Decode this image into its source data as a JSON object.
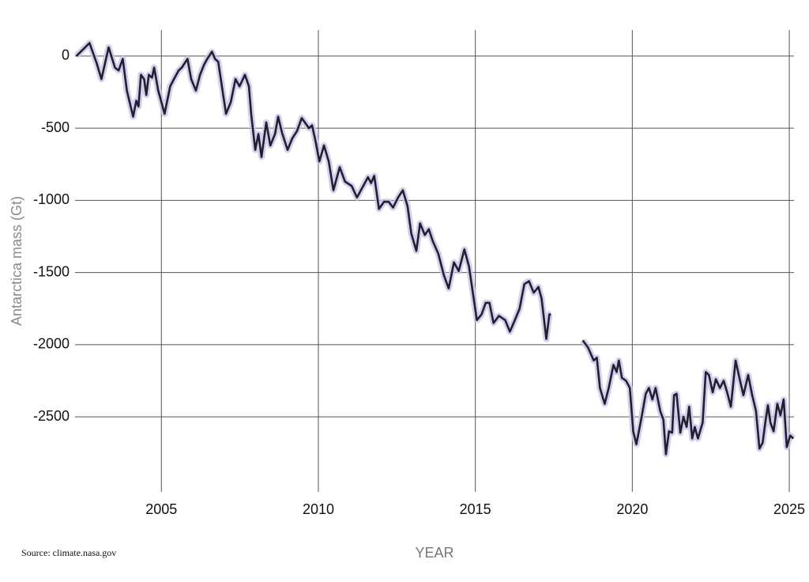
{
  "chart_data": {
    "type": "line",
    "y_label": "Antarctica mass (Gt)",
    "x_label": "YEAR",
    "source": "Source: climate.nasa.gov",
    "color": "#22202e",
    "band_color": "#c9c3ea",
    "grid": true,
    "xlim": [
      2002.25,
      2025.15
    ],
    "xticks": [
      2005,
      2010,
      2015,
      2020,
      2025
    ],
    "ylim": [
      -3020,
      180
    ],
    "yticks": [
      0,
      -500,
      -1000,
      -1500,
      -2000,
      -2500
    ],
    "x": [
      2002.29,
      2002.71,
      2002.94,
      2003.09,
      2003.32,
      2003.52,
      2003.64,
      2003.77,
      2003.9,
      2004.1,
      2004.2,
      2004.27,
      2004.35,
      2004.45,
      2004.52,
      2004.6,
      2004.7,
      2004.77,
      2004.9,
      2005.1,
      2005.28,
      2005.4,
      2005.55,
      2005.65,
      2005.83,
      2005.95,
      2006.1,
      2006.23,
      2006.36,
      2006.46,
      2006.61,
      2006.71,
      2006.81,
      2007.06,
      2007.21,
      2007.36,
      2007.49,
      2007.66,
      2007.79,
      2007.86,
      2007.99,
      2008.09,
      2008.19,
      2008.34,
      2008.47,
      2008.62,
      2008.72,
      2008.84,
      2009.02,
      2009.17,
      2009.32,
      2009.47,
      2009.57,
      2009.7,
      2009.8,
      2009.92,
      2010.03,
      2010.18,
      2010.33,
      2010.48,
      2010.68,
      2010.85,
      2011.06,
      2011.23,
      2011.43,
      2011.58,
      2011.68,
      2011.78,
      2011.93,
      2012.09,
      2012.24,
      2012.38,
      2012.54,
      2012.69,
      2012.84,
      2012.96,
      2013.12,
      2013.24,
      2013.39,
      2013.52,
      2013.64,
      2013.82,
      2014.0,
      2014.15,
      2014.32,
      2014.47,
      2014.65,
      2014.8,
      2014.9,
      2015.05,
      2015.2,
      2015.33,
      2015.45,
      2015.58,
      2015.75,
      2015.95,
      2016.1,
      2016.26,
      2016.41,
      2016.56,
      2016.71,
      2016.86,
      2017.01,
      2017.11,
      2017.26,
      2017.36,
      2017.41,
      2017.9,
      2018.42,
      2018.59,
      2018.77,
      2018.87,
      2018.97,
      2019.12,
      2019.25,
      2019.4,
      2019.5,
      2019.57,
      2019.67,
      2019.8,
      2019.92,
      2020.03,
      2020.13,
      2020.28,
      2020.43,
      2020.53,
      2020.64,
      2020.74,
      2020.89,
      2020.99,
      2021.07,
      2021.17,
      2021.27,
      2021.33,
      2021.41,
      2021.53,
      2021.63,
      2021.73,
      2021.81,
      2021.91,
      2021.99,
      2022.09,
      2022.24,
      2022.34,
      2022.44,
      2022.56,
      2022.66,
      2022.79,
      2022.91,
      2023.02,
      2023.14,
      2023.29,
      2023.42,
      2023.54,
      2023.69,
      2023.82,
      2023.94,
      2024.05,
      2024.15,
      2024.25,
      2024.32,
      2024.4,
      2024.5,
      2024.62,
      2024.72,
      2024.82,
      2024.92,
      2025.03,
      2025.13
    ],
    "values": [
      0,
      90,
      -50,
      -160,
      60,
      -80,
      -100,
      -20,
      -240,
      -420,
      -310,
      -350,
      -130,
      -160,
      -270,
      -130,
      -150,
      -80,
      -240,
      -400,
      -210,
      -160,
      -100,
      -80,
      -20,
      -160,
      -240,
      -130,
      -60,
      -20,
      30,
      -20,
      -40,
      -400,
      -320,
      -160,
      -210,
      -130,
      -210,
      -400,
      -650,
      -540,
      -700,
      -460,
      -620,
      -540,
      -420,
      -530,
      -650,
      -570,
      -520,
      -430,
      -460,
      -500,
      -480,
      -600,
      -730,
      -620,
      -730,
      -930,
      -770,
      -870,
      -900,
      -980,
      -900,
      -840,
      -880,
      -830,
      -1060,
      -1010,
      -1010,
      -1050,
      -980,
      -930,
      -1040,
      -1230,
      -1350,
      -1160,
      -1240,
      -1200,
      -1280,
      -1370,
      -1520,
      -1610,
      -1430,
      -1490,
      -1340,
      -1460,
      -1610,
      -1830,
      -1790,
      -1710,
      -1710,
      -1850,
      -1800,
      -1830,
      -1910,
      -1830,
      -1750,
      -1580,
      -1560,
      -1640,
      -1600,
      -1680,
      -1960,
      -1790,
      -1790,
      null,
      -1970,
      -2020,
      -2110,
      -2090,
      -2300,
      -2410,
      -2300,
      -2140,
      -2190,
      -2110,
      -2230,
      -2250,
      -2300,
      -2600,
      -2690,
      -2520,
      -2340,
      -2300,
      -2380,
      -2300,
      -2460,
      -2520,
      -2760,
      -2600,
      -2610,
      -2350,
      -2340,
      -2610,
      -2500,
      -2570,
      -2430,
      -2650,
      -2570,
      -2650,
      -2540,
      -2190,
      -2210,
      -2330,
      -2240,
      -2300,
      -2250,
      -2330,
      -2430,
      -2110,
      -2240,
      -2350,
      -2210,
      -2350,
      -2460,
      -2720,
      -2680,
      -2520,
      -2420,
      -2540,
      -2600,
      -2410,
      -2490,
      -2380,
      -2710,
      -2630,
      -2650
    ]
  }
}
